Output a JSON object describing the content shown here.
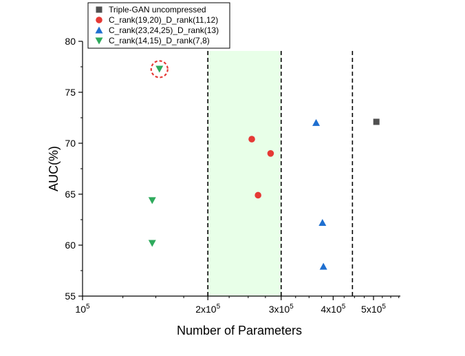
{
  "chart_data": {
    "type": "scatter",
    "xlabel": "Number of Parameters",
    "ylabel": "AUC(%)",
    "x_scale": "log",
    "xlim": [
      100000,
      580000
    ],
    "ylim": [
      55,
      80
    ],
    "x_ticks": [
      {
        "value": 100000,
        "label_base": "10",
        "label_exp": "5"
      },
      {
        "value": 200000,
        "label_base": "2x10",
        "label_exp": "5"
      },
      {
        "value": 300000,
        "label_base": "3x10",
        "label_exp": "5"
      },
      {
        "value": 400000,
        "label_base": "4x10",
        "label_exp": "5"
      },
      {
        "value": 500000,
        "label_base": "5x10",
        "label_exp": "5"
      }
    ],
    "y_ticks": [
      {
        "value": 55,
        "label": "55"
      },
      {
        "value": 60,
        "label": "60"
      },
      {
        "value": 65,
        "label": "65"
      },
      {
        "value": 70,
        "label": "70"
      },
      {
        "value": 75,
        "label": "75"
      },
      {
        "value": 80,
        "label": "80"
      }
    ],
    "grid": false,
    "legend_position": "top-left",
    "dashed_vertical_lines": [
      200000,
      300000,
      445000
    ],
    "shaded_region": {
      "x_range": [
        200000,
        300000
      ],
      "color": "#e8ffe8"
    },
    "highlight_circle": {
      "x": 153000,
      "y": 77.3,
      "color": "#e53935"
    },
    "series": [
      {
        "name": "Triple-GAN uncompressed",
        "marker": "square",
        "color": "#505050",
        "points": [
          {
            "x": 508000,
            "y": 72.1
          }
        ]
      },
      {
        "name": "C_rank(19,20)_D_rank(11,12)",
        "marker": "circle",
        "color": "#e53935",
        "points": [
          {
            "x": 255000,
            "y": 70.4
          },
          {
            "x": 283000,
            "y": 69.0
          },
          {
            "x": 264000,
            "y": 64.9
          }
        ]
      },
      {
        "name": "C_rank(23,24,25)_D_rank(13)",
        "marker": "triangle-up",
        "color": "#1e6fd0",
        "points": [
          {
            "x": 364000,
            "y": 72.0
          },
          {
            "x": 377000,
            "y": 62.2
          },
          {
            "x": 379000,
            "y": 57.9
          }
        ]
      },
      {
        "name": "C_rank(14,15)_D_rank(7,8)",
        "marker": "triangle-down",
        "color": "#2eaa5c",
        "points": [
          {
            "x": 153000,
            "y": 77.3
          },
          {
            "x": 147000,
            "y": 64.4
          },
          {
            "x": 147000,
            "y": 60.2
          }
        ]
      }
    ]
  }
}
